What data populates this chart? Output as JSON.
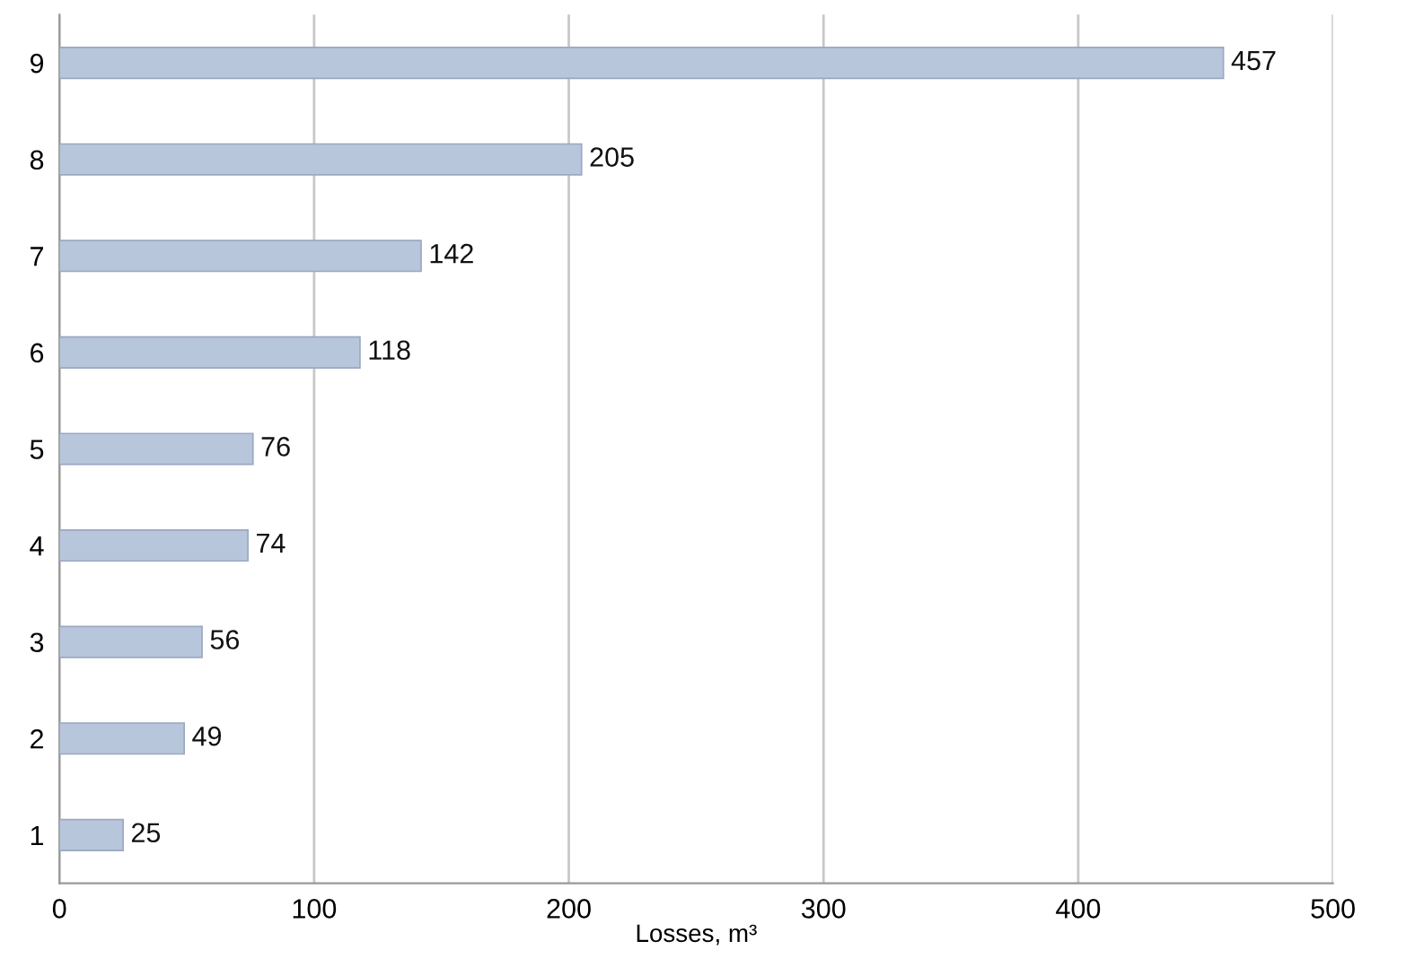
{
  "chart_data": {
    "type": "bar",
    "orientation": "horizontal",
    "categories": [
      "9",
      "8",
      "7",
      "6",
      "5",
      "4",
      "3",
      "2",
      "1"
    ],
    "values": [
      457,
      205,
      142,
      118,
      76,
      74,
      56,
      49,
      25
    ],
    "color": "#b8c6dc",
    "xlim": [
      0,
      500
    ],
    "xticks": [
      0,
      100,
      200,
      300,
      400,
      500
    ],
    "xlabel": "Losses, m³",
    "grid": "x",
    "data_labels": true
  }
}
